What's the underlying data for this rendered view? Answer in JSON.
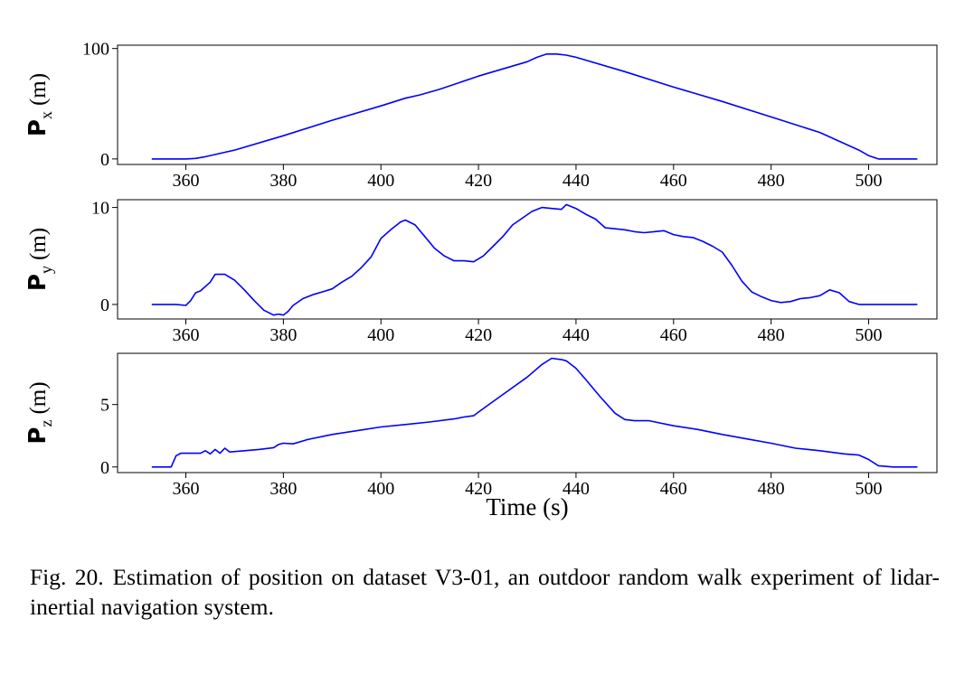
{
  "chart_data": [
    {
      "type": "line",
      "ylabel": {
        "symbol": "P",
        "subscript": "x",
        "unit": "(m)"
      },
      "xlim": [
        346,
        514
      ],
      "ylim": [
        -5,
        103
      ],
      "xticks": [
        360,
        380,
        400,
        420,
        440,
        460,
        480,
        500
      ],
      "yticks": [
        0,
        100
      ],
      "series": [
        {
          "name": "Px",
          "color": "#0000ff",
          "x": [
            353,
            360,
            362,
            364,
            366,
            370,
            380,
            390,
            400,
            405,
            408,
            412,
            420,
            430,
            432,
            434,
            436,
            438,
            440,
            450,
            460,
            470,
            480,
            490,
            498,
            500,
            502,
            505,
            510
          ],
          "y": [
            0,
            0,
            0.5,
            2,
            4,
            8,
            21,
            35,
            48,
            55,
            58,
            63,
            75,
            88,
            92,
            95,
            95,
            94,
            92,
            79,
            65,
            52,
            38,
            24,
            8,
            3,
            0,
            0,
            0
          ]
        }
      ]
    },
    {
      "type": "line",
      "ylabel": {
        "symbol": "P",
        "subscript": "y",
        "unit": "(m)"
      },
      "xlim": [
        346,
        514
      ],
      "ylim": [
        -1.5,
        10.8
      ],
      "xticks": [
        360,
        380,
        400,
        420,
        440,
        460,
        480,
        500
      ],
      "yticks": [
        0,
        10
      ],
      "series": [
        {
          "name": "Py",
          "color": "#0000ff",
          "x": [
            353,
            358,
            360,
            361,
            362,
            363,
            365,
            366,
            368,
            370,
            372,
            374,
            376,
            378,
            379,
            380,
            381,
            382,
            384,
            386,
            388,
            390,
            392,
            394,
            396,
            398,
            400,
            402,
            404,
            405,
            407,
            409,
            411,
            413,
            415,
            417,
            419,
            421,
            423,
            425,
            427,
            429,
            431,
            433,
            435,
            437,
            438,
            440,
            442,
            444,
            446,
            448,
            450,
            452,
            454,
            456,
            458,
            460,
            462,
            464,
            466,
            468,
            470,
            472,
            474,
            476,
            478,
            480,
            482,
            484,
            486,
            488,
            490,
            492,
            494,
            496,
            498,
            500,
            505,
            510
          ],
          "y": [
            0,
            0,
            -0.1,
            0.4,
            1.2,
            1.4,
            2.3,
            3.1,
            3.1,
            2.5,
            1.5,
            0.4,
            -0.6,
            -1.1,
            -1.0,
            -1.1,
            -0.7,
            -0.1,
            0.6,
            1.0,
            1.3,
            1.6,
            2.3,
            2.9,
            3.8,
            4.9,
            6.8,
            7.7,
            8.5,
            8.7,
            8.2,
            7.0,
            5.8,
            5.0,
            4.5,
            4.5,
            4.4,
            5.0,
            6.0,
            7.0,
            8.2,
            8.9,
            9.6,
            10.0,
            9.9,
            9.8,
            10.3,
            9.9,
            9.3,
            8.8,
            7.9,
            7.8,
            7.7,
            7.5,
            7.4,
            7.5,
            7.6,
            7.2,
            7.0,
            6.9,
            6.5,
            6.0,
            5.4,
            4.0,
            2.4,
            1.3,
            0.8,
            0.4,
            0.2,
            0.3,
            0.6,
            0.7,
            0.9,
            1.5,
            1.2,
            0.3,
            0,
            0,
            0,
            0
          ]
        }
      ]
    },
    {
      "type": "line",
      "ylabel": {
        "symbol": "P",
        "subscript": "z",
        "unit": "(m)"
      },
      "xlim": [
        346,
        514
      ],
      "ylim": [
        -0.45,
        9.1
      ],
      "xticks": [
        360,
        380,
        400,
        420,
        440,
        460,
        480,
        500
      ],
      "yticks": [
        0,
        5
      ],
      "series": [
        {
          "name": "Pz",
          "color": "#0000ff",
          "x": [
            353,
            357,
            358,
            359,
            361,
            363,
            364,
            365,
            366,
            367,
            368,
            369,
            372,
            375,
            378,
            379,
            380,
            382,
            385,
            390,
            395,
            400,
            405,
            410,
            415,
            417,
            419,
            420,
            425,
            430,
            433,
            435,
            437,
            438,
            440,
            442,
            445,
            448,
            450,
            452,
            455,
            460,
            465,
            470,
            475,
            480,
            485,
            490,
            495,
            498,
            500,
            502,
            505,
            510
          ],
          "y": [
            0,
            0,
            0.9,
            1.1,
            1.1,
            1.1,
            1.3,
            1.05,
            1.4,
            1.1,
            1.5,
            1.2,
            1.3,
            1.4,
            1.55,
            1.8,
            1.9,
            1.85,
            2.2,
            2.6,
            2.9,
            3.2,
            3.4,
            3.6,
            3.85,
            4.0,
            4.1,
            4.4,
            5.8,
            7.2,
            8.2,
            8.7,
            8.6,
            8.5,
            7.9,
            7.0,
            5.6,
            4.3,
            3.8,
            3.7,
            3.7,
            3.3,
            3.0,
            2.6,
            2.25,
            1.9,
            1.5,
            1.3,
            1.05,
            0.95,
            0.6,
            0.1,
            0,
            0
          ]
        }
      ]
    }
  ],
  "x_axis_label": "Time (s)",
  "caption": {
    "figure_number": "Fig. 20.",
    "text": "Estimation of position on dataset V3-01, an outdoor random walk experiment of lidar-inertial navigation system."
  },
  "colors": {
    "line": "#0000ff",
    "axes": "#000000",
    "background": "#ffffff"
  }
}
